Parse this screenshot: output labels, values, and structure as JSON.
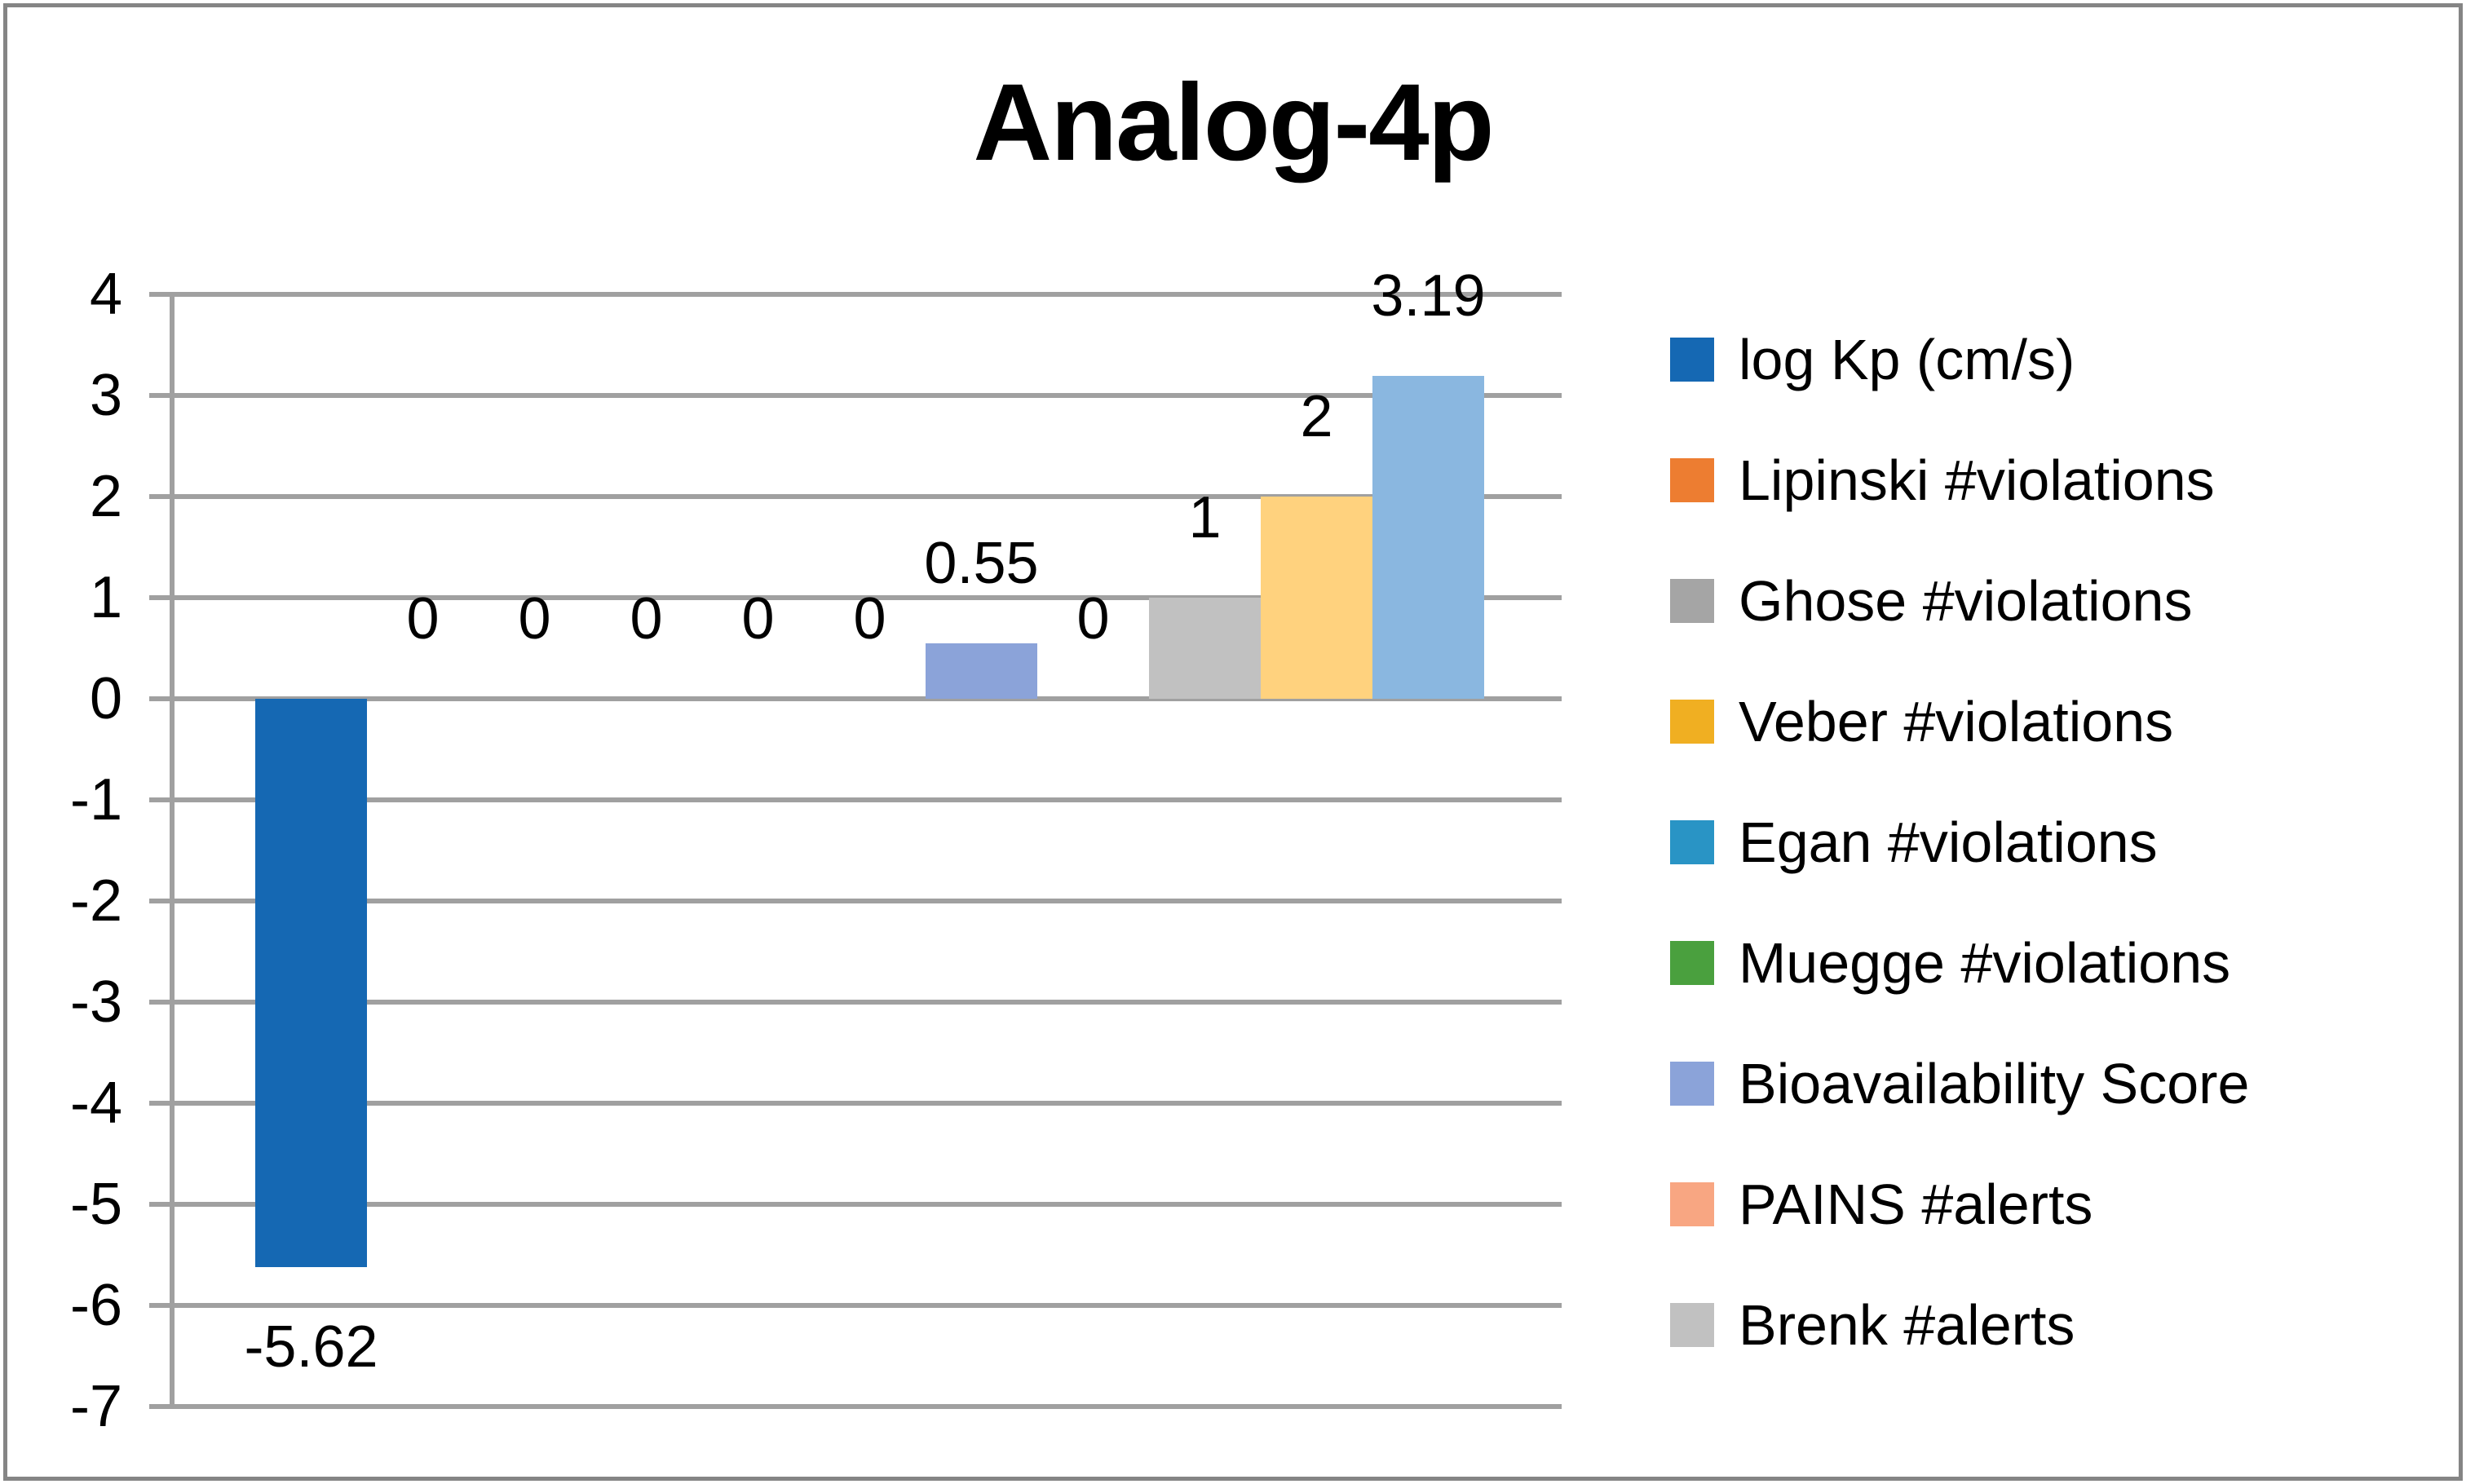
{
  "chart_data": {
    "type": "bar",
    "title": "Analog-4p",
    "xlabel": "",
    "ylabel": "",
    "ylim": [
      -7,
      4
    ],
    "y_tick_labels": [
      "4",
      "3",
      "2",
      "1",
      "0",
      "-1",
      "-2",
      "-3",
      "-4",
      "-5",
      "-6",
      "-7"
    ],
    "grid": true,
    "legend_position": "right",
    "axis_color": "#A0A0A0",
    "border_color": "#858585",
    "text_color": "#000000",
    "series": [
      {
        "name": "log Kp (cm/s)",
        "value": -5.62,
        "label": "-5.62",
        "color": "#1568B3"
      },
      {
        "name": "Lipinski #violations",
        "value": 0,
        "label": "0",
        "color": "#ED7D31"
      },
      {
        "name": "Ghose #violations",
        "value": 0,
        "label": "0",
        "color": "#A5A5A5"
      },
      {
        "name": "Veber #violations",
        "value": 0,
        "label": "0",
        "color": "#F0AF22"
      },
      {
        "name": "Egan #violations",
        "value": 0,
        "label": "0",
        "color": "#2994C5"
      },
      {
        "name": "Muegge #violations",
        "value": 0,
        "label": "0",
        "color": "#4AA03E"
      },
      {
        "name": "Bioavailability Score",
        "value": 0.55,
        "label": "0.55",
        "color": "#8BA3D9"
      },
      {
        "name": "PAINS #alerts",
        "value": 0,
        "label": "0",
        "color": "#F8A682"
      },
      {
        "name": "Brenk #alerts",
        "value": 1,
        "label": "1",
        "color": "#C1C1C1"
      },
      {
        "name": "",
        "value": 2,
        "label": "2",
        "color": "#FFD27E"
      },
      {
        "name": "",
        "value": 3.19,
        "label": "3.19",
        "color": "#8AB7E0"
      }
    ],
    "legend": [
      {
        "label": "log Kp (cm/s)",
        "color": "#1568B3"
      },
      {
        "label": "Lipinski #violations",
        "color": "#ED7D31"
      },
      {
        "label": "Ghose #violations",
        "color": "#A5A5A5"
      },
      {
        "label": "Veber #violations",
        "color": "#F0AF22"
      },
      {
        "label": "Egan #violations",
        "color": "#2994C5"
      },
      {
        "label": "Muegge #violations",
        "color": "#4AA03E"
      },
      {
        "label": "Bioavailability Score",
        "color": "#8BA3D9"
      },
      {
        "label": "PAINS #alerts",
        "color": "#F8A682"
      },
      {
        "label": "Brenk #alerts",
        "color": "#C1C1C1"
      }
    ]
  }
}
